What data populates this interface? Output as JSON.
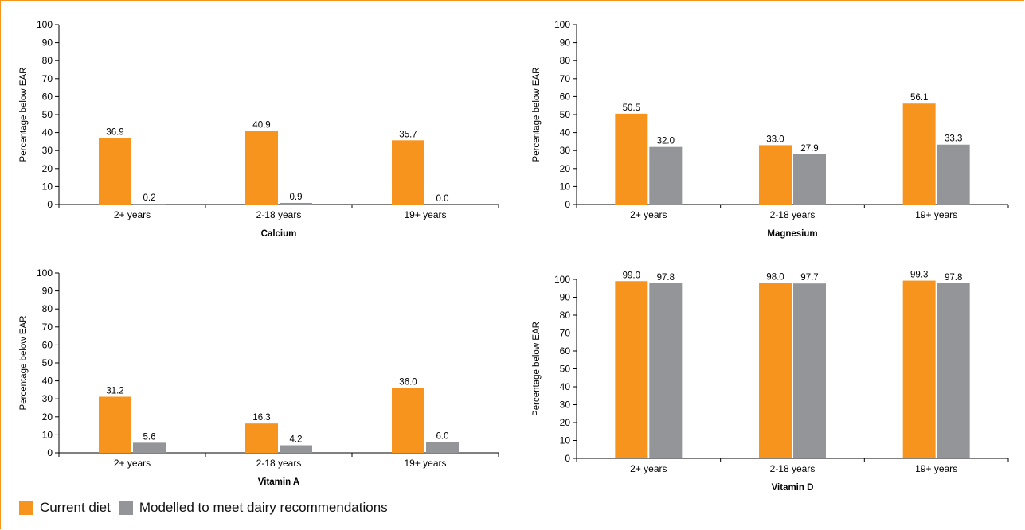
{
  "colors": {
    "current": "#f7941d",
    "modelled": "#939598",
    "border": "#f7941d"
  },
  "legend": {
    "items": [
      {
        "label": "Current diet",
        "color": "#f7941d"
      },
      {
        "label": "Modelled to meet dairy recommendations",
        "color": "#939598"
      }
    ]
  },
  "chart_data": [
    {
      "type": "bar",
      "title": "",
      "xlabel": "Calcium",
      "ylabel": "Percentage below EAR",
      "ylim": [
        0,
        100
      ],
      "yticks": [
        0,
        10,
        20,
        30,
        40,
        50,
        60,
        70,
        80,
        90,
        100
      ],
      "categories": [
        "2+ years",
        "2-18 years",
        "19+ years"
      ],
      "series": [
        {
          "name": "Current diet",
          "values": [
            36.9,
            40.9,
            35.7
          ],
          "labels": [
            "36.9",
            "40.9",
            "35.7"
          ]
        },
        {
          "name": "Modelled to meet dairy recommendations",
          "values": [
            0.2,
            0.9,
            0.0
          ],
          "labels": [
            "0.2",
            "0.9",
            "0.0"
          ]
        }
      ]
    },
    {
      "type": "bar",
      "title": "",
      "xlabel": "Magnesium",
      "ylabel": "Percentage below EAR",
      "ylim": [
        0,
        100
      ],
      "yticks": [
        0,
        10,
        20,
        30,
        40,
        50,
        60,
        70,
        80,
        90,
        100
      ],
      "categories": [
        "2+ years",
        "2-18 years",
        "19+ years"
      ],
      "series": [
        {
          "name": "Current diet",
          "values": [
            50.5,
            33.0,
            56.1
          ],
          "labels": [
            "50.5",
            "33.0",
            "56.1"
          ]
        },
        {
          "name": "Modelled to meet dairy recommendations",
          "values": [
            32.0,
            27.9,
            33.3
          ],
          "labels": [
            "32.0",
            "27.9",
            "33.3"
          ]
        }
      ]
    },
    {
      "type": "bar",
      "title": "",
      "xlabel": "Vitamin A",
      "ylabel": "Percentage below EAR",
      "ylim": [
        0,
        100
      ],
      "yticks": [
        0,
        10,
        20,
        30,
        40,
        50,
        60,
        70,
        80,
        90,
        100
      ],
      "categories": [
        "2+ years",
        "2-18 years",
        "19+ years"
      ],
      "series": [
        {
          "name": "Current diet",
          "values": [
            31.2,
            16.3,
            36.0
          ],
          "labels": [
            "31.2",
            "16.3",
            "36.0"
          ]
        },
        {
          "name": "Modelled to meet dairy recommendations",
          "values": [
            5.6,
            4.2,
            6.0
          ],
          "labels": [
            "5.6",
            "4.2",
            "6.0"
          ]
        }
      ]
    },
    {
      "type": "bar",
      "title": "",
      "xlabel": "Vitamin D",
      "ylabel": "Percentage below EAR",
      "ylim": [
        0,
        100
      ],
      "yticks": [
        0,
        10,
        20,
        30,
        40,
        50,
        60,
        70,
        80,
        90,
        100
      ],
      "categories": [
        "2+ years",
        "2-18 years",
        "19+ years"
      ],
      "series": [
        {
          "name": "Current diet",
          "values": [
            99.0,
            98.0,
            99.3
          ],
          "labels": [
            "99.0",
            "98.0",
            "99.3"
          ]
        },
        {
          "name": "Modelled to meet dairy recommendations",
          "values": [
            97.8,
            97.7,
            97.8
          ],
          "labels": [
            "97.8",
            "97.7",
            "97.8"
          ]
        }
      ]
    }
  ]
}
